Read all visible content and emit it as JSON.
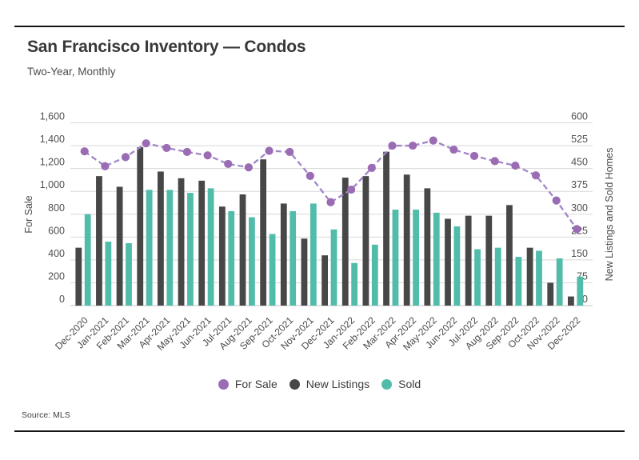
{
  "header": {
    "title": "San Francisco Inventory — Condos",
    "subtitle": "Two-Year, Monthly"
  },
  "footer": {
    "source": "Source: MLS"
  },
  "legend": {
    "items": [
      {
        "label": "For Sale",
        "color": "#9a6cb4"
      },
      {
        "label": "New Listings",
        "color": "#474747"
      },
      {
        "label": "Sold",
        "color": "#52bcab"
      }
    ]
  },
  "chart_data": {
    "type": "bar",
    "subtype": "combo line + grouped bars, dual axis",
    "title": "San Francisco Inventory — Condos",
    "subtitle": "Two-Year, Monthly",
    "categories": [
      "Dec-2020",
      "Jan-2021",
      "Feb-2021",
      "Mar-2021",
      "Apr-2021",
      "May-2021",
      "Jun-2021",
      "Jul-2021",
      "Aug-2021",
      "Sep-2021",
      "Oct-2021",
      "Nov-2021",
      "Dec-2021",
      "Jan-2022",
      "Feb-2022",
      "Mar-2022",
      "Apr-2022",
      "May-2022",
      "Jun-2022",
      "Jul-2022",
      "Aug-2022",
      "Sep-2022",
      "Oct-2022",
      "Nov-2022",
      "Dec-2022"
    ],
    "series": [
      {
        "name": "For Sale",
        "type": "line",
        "axis": "left",
        "color": "#9a6cb4",
        "line_color": "#a185c9",
        "values": [
          1350,
          1220,
          1300,
          1420,
          1380,
          1345,
          1315,
          1240,
          1210,
          1355,
          1345,
          1135,
          905,
          1015,
          1205,
          1400,
          1400,
          1445,
          1365,
          1310,
          1265,
          1225,
          1140,
          920,
          670
        ]
      },
      {
        "name": "New Listings",
        "type": "bar",
        "axis": "right",
        "color": "#474747",
        "values": [
          190,
          425,
          390,
          520,
          440,
          418,
          410,
          325,
          365,
          480,
          335,
          220,
          165,
          420,
          425,
          505,
          430,
          385,
          285,
          295,
          295,
          330,
          190,
          75,
          30
        ]
      },
      {
        "name": "Sold",
        "type": "bar",
        "axis": "right",
        "color": "#52bcab",
        "values": [
          300,
          210,
          205,
          380,
          380,
          370,
          385,
          310,
          290,
          235,
          310,
          335,
          250,
          140,
          200,
          315,
          315,
          305,
          260,
          185,
          190,
          160,
          180,
          155,
          95
        ]
      }
    ],
    "left_axis": {
      "label": "For Sale",
      "min": 0,
      "max": 1600,
      "step": 200
    },
    "right_axis": {
      "label": "New Listings and Sold Homes",
      "min": 0,
      "max": 600,
      "step": 75
    },
    "grid": true,
    "line_style": "dashed",
    "legend_position": "bottom"
  }
}
